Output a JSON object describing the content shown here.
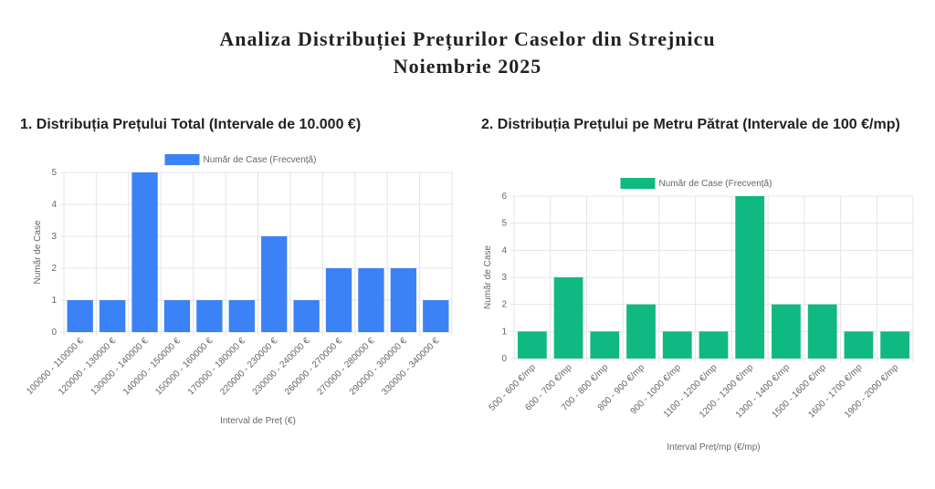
{
  "header": {
    "title": "Analiza Distribuției Prețurilor Caselor din Strejnicu",
    "subtitle": "Noiembrie 2025"
  },
  "chart_data": [
    {
      "type": "bar",
      "title": "1. Distribuția Prețului Total (Intervale de 10.000 €)",
      "x_label": "Interval de Preț (€)",
      "y_label": "Număr de Case",
      "categories": [
        "100000 - 110000 €",
        "120000 - 130000 €",
        "130000 - 140000 €",
        "140000 - 150000 €",
        "150000 - 160000 €",
        "170000 - 180000 €",
        "220000 - 230000 €",
        "230000 - 240000 €",
        "260000 - 270000 €",
        "270000 - 280000 €",
        "290000 - 300000 €",
        "330000 - 340000 €"
      ],
      "series": [
        {
          "name": "Număr de Case (Frecvență)",
          "color": "#3b82f6",
          "values": [
            1,
            1,
            5,
            1,
            1,
            1,
            3,
            1,
            2,
            2,
            2,
            1
          ]
        }
      ],
      "ylim": [
        0,
        5
      ],
      "yticks": [
        0,
        1,
        2,
        3,
        4,
        5
      ],
      "grid": true,
      "legend": "top"
    },
    {
      "type": "bar",
      "title": "2. Distribuția Prețului pe Metru Pătrat (Intervale de 100 €/mp)",
      "x_label": "Interval Preț/mp (€/mp)",
      "y_label": "Număr de Case",
      "categories": [
        "500 - 600 €/mp",
        "600 - 700 €/mp",
        "700 - 800 €/mp",
        "800 - 900 €/mp",
        "900 - 1000 €/mp",
        "1100 - 1200 €/mp",
        "1200 - 1300 €/mp",
        "1300 - 1400 €/mp",
        "1500 - 1600 €/mp",
        "1600 - 1700 €/mp",
        "1900 - 2000 €/mp"
      ],
      "series": [
        {
          "name": "Număr de Case (Frecvență)",
          "color": "#10b981",
          "values": [
            1,
            3,
            1,
            2,
            1,
            1,
            6,
            2,
            2,
            1,
            1
          ]
        }
      ],
      "ylim": [
        0,
        6
      ],
      "yticks": [
        0,
        1,
        2,
        3,
        4,
        5,
        6
      ],
      "grid": true,
      "legend": "top"
    }
  ]
}
